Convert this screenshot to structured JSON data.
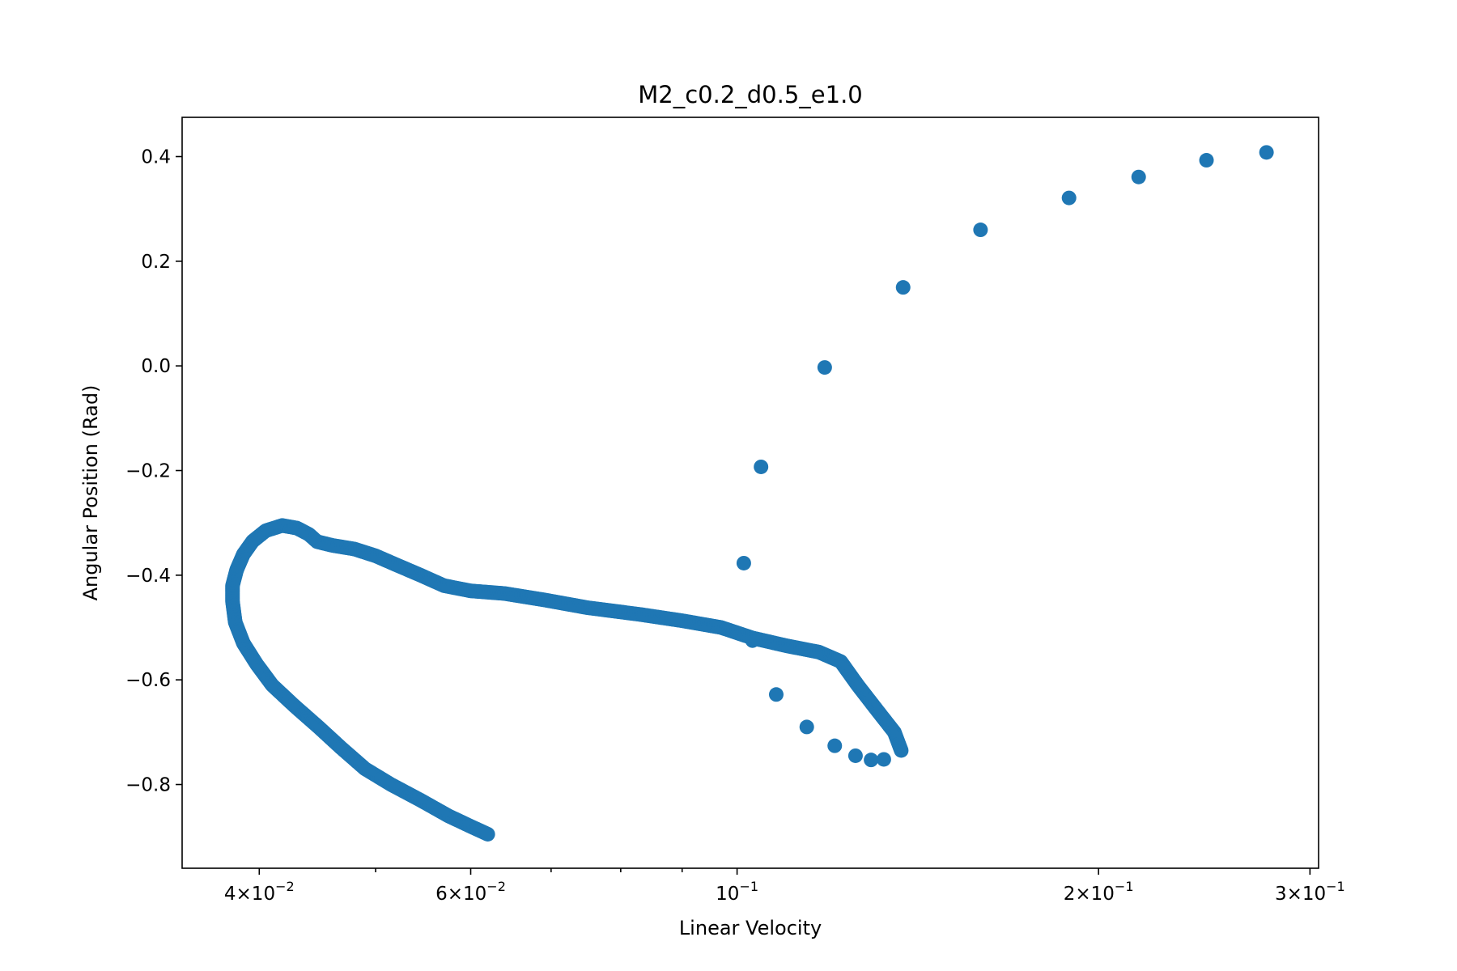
{
  "chart_data": {
    "type": "scatter",
    "title": "M2_c0.2_d0.5_e1.0",
    "xlabel": "Linear Velocity",
    "ylabel": "Angular Position (Rad)",
    "xscale": "log",
    "xlim": [
      0.0345,
      0.305
    ],
    "ylim": [
      -0.96,
      0.475
    ],
    "grid": false,
    "legend": "none",
    "color": "#1f77b4",
    "x_major_ticks": [
      {
        "value": 0.04,
        "mantissa": "4",
        "exp": "−2"
      },
      {
        "value": 0.06,
        "mantissa": "6",
        "exp": "−2"
      },
      {
        "value": 0.1,
        "mantissa": "",
        "exp": "−1"
      },
      {
        "value": 0.2,
        "mantissa": "2",
        "exp": "−1"
      },
      {
        "value": 0.3,
        "mantissa": "3",
        "exp": "−1"
      }
    ],
    "x_minor_ticks": [
      0.05,
      0.07,
      0.08,
      0.09
    ],
    "y_ticks": [
      {
        "value": 0.4,
        "label": "0.4"
      },
      {
        "value": 0.2,
        "label": "0.2"
      },
      {
        "value": 0.0,
        "label": "0.0"
      },
      {
        "value": -0.2,
        "label": "−0.2"
      },
      {
        "value": -0.4,
        "label": "−0.4"
      },
      {
        "value": -0.6,
        "label": "−0.6"
      },
      {
        "value": -0.8,
        "label": "−0.8"
      }
    ],
    "series": [
      {
        "points": [
          [
            0.276,
            0.408
          ],
          [
            0.246,
            0.393
          ],
          [
            0.216,
            0.361
          ],
          [
            0.189,
            0.321
          ],
          [
            0.1595,
            0.26
          ],
          [
            0.1375,
            0.15
          ],
          [
            0.1183,
            -0.003
          ],
          [
            0.1047,
            -0.193
          ],
          [
            0.1013,
            -0.377
          ],
          [
            0.103,
            -0.525
          ],
          [
            0.1078,
            -0.628
          ],
          [
            0.1143,
            -0.69
          ],
          [
            0.1206,
            -0.726
          ],
          [
            0.1255,
            -0.745
          ],
          [
            0.1293,
            -0.753
          ],
          [
            0.1325,
            -0.752
          ]
        ]
      },
      {
        "points": [
          [
            0.137,
            -0.735
          ],
          [
            0.1352,
            -0.7
          ],
          [
            0.131,
            -0.66
          ],
          [
            0.126,
            -0.61
          ],
          [
            0.122,
            -0.565
          ],
          [
            0.117,
            -0.547
          ],
          [
            0.11,
            -0.535
          ],
          [
            0.103,
            -0.52
          ],
          [
            0.097,
            -0.5
          ],
          [
            0.09,
            -0.487
          ],
          [
            0.083,
            -0.475
          ],
          [
            0.075,
            -0.462
          ],
          [
            0.069,
            -0.447
          ],
          [
            0.064,
            -0.435
          ],
          [
            0.06,
            -0.43
          ],
          [
            0.057,
            -0.42
          ],
          [
            0.0545,
            -0.4
          ],
          [
            0.052,
            -0.38
          ],
          [
            0.05,
            -0.363
          ],
          [
            0.048,
            -0.35
          ],
          [
            0.046,
            -0.343
          ],
          [
            0.0447,
            -0.336
          ],
          [
            0.044,
            -0.322
          ],
          [
            0.043,
            -0.31
          ],
          [
            0.0418,
            -0.305
          ],
          [
            0.0405,
            -0.315
          ],
          [
            0.0395,
            -0.335
          ],
          [
            0.0388,
            -0.36
          ],
          [
            0.0383,
            -0.39
          ],
          [
            0.038,
            -0.42
          ],
          [
            0.038,
            -0.45
          ],
          [
            0.0382,
            -0.49
          ],
          [
            0.0388,
            -0.53
          ],
          [
            0.0398,
            -0.57
          ],
          [
            0.041,
            -0.61
          ],
          [
            0.0428,
            -0.65
          ],
          [
            0.0448,
            -0.69
          ],
          [
            0.0468,
            -0.73
          ],
          [
            0.049,
            -0.77
          ],
          [
            0.0515,
            -0.8
          ],
          [
            0.0545,
            -0.83
          ],
          [
            0.0575,
            -0.86
          ],
          [
            0.06,
            -0.88
          ],
          [
            0.062,
            -0.895
          ]
        ]
      }
    ]
  }
}
